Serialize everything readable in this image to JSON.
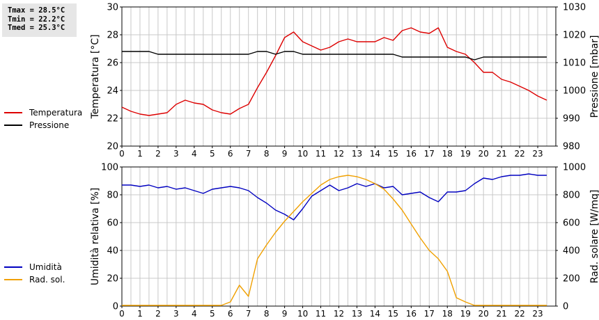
{
  "stats": {
    "tmax": "Tmax = 28.5°C",
    "tmin": "Tmin = 22.2°C",
    "tmed": "Tmed = 25.3°C"
  },
  "colors": {
    "temperature": "#dd0000",
    "pressure": "#000000",
    "humidity": "#0000c0",
    "radiation": "#f0a000",
    "grid": "#c8c8c8"
  },
  "chart_data": [
    {
      "type": "line",
      "legend": [
        "Temperatura",
        "Pressione"
      ],
      "ylabel_left": "Temperatura [°C]",
      "ylabel_right": "Pressione [mbar]",
      "ylim_left": [
        20,
        30
      ],
      "ylim_right": [
        980,
        1030
      ],
      "yticks_left": [
        "20",
        "22",
        "24",
        "26",
        "28",
        "30"
      ],
      "yticks_right": [
        "980",
        "990",
        "1000",
        "1010",
        "1020",
        "1030"
      ],
      "xlim": [
        0,
        24
      ],
      "xticks": [
        "0",
        "1",
        "2",
        "3",
        "4",
        "5",
        "6",
        "7",
        "8",
        "9",
        "10",
        "11",
        "12",
        "13",
        "14",
        "15",
        "16",
        "17",
        "18",
        "19",
        "20",
        "21",
        "22",
        "23"
      ],
      "grid": true,
      "series": [
        {
          "name": "Temperatura",
          "axis": "left",
          "x": [
            0,
            0.5,
            1,
            1.5,
            2,
            2.5,
            3,
            3.5,
            4,
            4.5,
            5,
            5.5,
            6,
            6.5,
            7,
            7.5,
            8,
            8.5,
            9,
            9.5,
            10,
            10.5,
            11,
            11.5,
            12,
            12.5,
            13,
            13.5,
            14,
            14.5,
            15,
            15.5,
            16,
            16.5,
            17,
            17.5,
            18,
            18.5,
            19,
            19.5,
            20,
            20.5,
            21,
            21.5,
            22,
            22.5,
            23,
            23.5
          ],
          "y": [
            22.8,
            22.5,
            22.3,
            22.2,
            22.3,
            22.4,
            23.0,
            23.3,
            23.1,
            23.0,
            22.6,
            22.4,
            22.3,
            22.7,
            23.0,
            24.2,
            25.3,
            26.5,
            27.8,
            28.2,
            27.5,
            27.2,
            26.9,
            27.1,
            27.5,
            27.7,
            27.5,
            27.5,
            27.5,
            27.8,
            27.6,
            28.3,
            28.5,
            28.2,
            28.1,
            28.5,
            27.1,
            26.8,
            26.6,
            26.0,
            25.3,
            25.3,
            24.8,
            24.6,
            24.3,
            24.0,
            23.6,
            23.3
          ]
        },
        {
          "name": "Pressione",
          "axis": "right",
          "x": [
            0,
            0.5,
            1,
            1.5,
            2,
            2.5,
            3,
            3.5,
            4,
            4.5,
            5,
            5.5,
            6,
            6.5,
            7,
            7.5,
            8,
            8.5,
            9,
            9.5,
            10,
            10.5,
            11,
            11.5,
            12,
            12.5,
            13,
            13.5,
            14,
            14.5,
            15,
            15.5,
            16,
            16.5,
            17,
            17.5,
            18,
            18.5,
            19,
            19.5,
            20,
            20.5,
            21,
            21.5,
            22,
            22.5,
            23,
            23.5
          ],
          "y": [
            1014,
            1014,
            1014,
            1014,
            1013,
            1013,
            1013,
            1013,
            1013,
            1013,
            1013,
            1013,
            1013,
            1013,
            1013,
            1014,
            1014,
            1013,
            1014,
            1014,
            1013,
            1013,
            1013,
            1013,
            1013,
            1013,
            1013,
            1013,
            1013,
            1013,
            1013,
            1012,
            1012,
            1012,
            1012,
            1012,
            1012,
            1012,
            1012,
            1011,
            1012,
            1012,
            1012,
            1012,
            1012,
            1012,
            1012,
            1012
          ]
        }
      ]
    },
    {
      "type": "line",
      "legend": [
        "Umidità",
        "Rad. sol."
      ],
      "ylabel_left": "Umidità relativa [%]",
      "ylabel_right": "Rad. solare [W/mq]",
      "ylim_left": [
        0,
        100
      ],
      "ylim_right": [
        0,
        1000
      ],
      "yticks_left": [
        "0",
        "20",
        "40",
        "60",
        "80",
        "100"
      ],
      "yticks_right": [
        "0",
        "200",
        "400",
        "600",
        "800",
        "1000"
      ],
      "xlim": [
        0,
        24
      ],
      "xticks": [
        "0",
        "1",
        "2",
        "3",
        "4",
        "5",
        "6",
        "7",
        "8",
        "9",
        "10",
        "11",
        "12",
        "13",
        "14",
        "15",
        "16",
        "17",
        "18",
        "19",
        "20",
        "21",
        "22",
        "23"
      ],
      "grid": true,
      "series": [
        {
          "name": "Umidità",
          "axis": "left",
          "x": [
            0,
            0.5,
            1,
            1.5,
            2,
            2.5,
            3,
            3.5,
            4,
            4.5,
            5,
            5.5,
            6,
            6.5,
            7,
            7.5,
            8,
            8.5,
            9,
            9.5,
            10,
            10.5,
            11,
            11.5,
            12,
            12.5,
            13,
            13.5,
            14,
            14.5,
            15,
            15.5,
            16,
            16.5,
            17,
            17.5,
            18,
            18.5,
            19,
            19.5,
            20,
            20.5,
            21,
            21.5,
            22,
            22.5,
            23,
            23.5
          ],
          "y": [
            87,
            87,
            86,
            87,
            85,
            86,
            84,
            85,
            83,
            81,
            84,
            85,
            86,
            85,
            83,
            78,
            74,
            69,
            66,
            62,
            70,
            79,
            83,
            87,
            83,
            85,
            88,
            86,
            88,
            85,
            86,
            80,
            81,
            82,
            78,
            75,
            82,
            82,
            83,
            88,
            92,
            91,
            93,
            94,
            94,
            95,
            94,
            94
          ]
        },
        {
          "name": "Rad. sol.",
          "axis": "right",
          "x": [
            0,
            0.5,
            1,
            1.5,
            2,
            2.5,
            3,
            3.5,
            4,
            4.5,
            5,
            5.5,
            6,
            6.5,
            7,
            7.5,
            8,
            8.5,
            9,
            9.5,
            10,
            10.5,
            11,
            11.5,
            12,
            12.5,
            13,
            13.5,
            14,
            14.5,
            15,
            15.5,
            16,
            16.5,
            17,
            17.5,
            18,
            18.5,
            19,
            19.5,
            20,
            20.5,
            21,
            21.5,
            22,
            22.5,
            23,
            23.5
          ],
          "y": [
            5,
            5,
            5,
            5,
            5,
            5,
            5,
            5,
            5,
            5,
            5,
            5,
            30,
            150,
            70,
            340,
            440,
            530,
            610,
            680,
            750,
            810,
            870,
            910,
            930,
            940,
            930,
            910,
            880,
            840,
            770,
            690,
            590,
            490,
            400,
            340,
            250,
            60,
            30,
            5,
            5,
            5,
            5,
            5,
            5,
            5,
            5,
            5
          ]
        }
      ]
    }
  ]
}
